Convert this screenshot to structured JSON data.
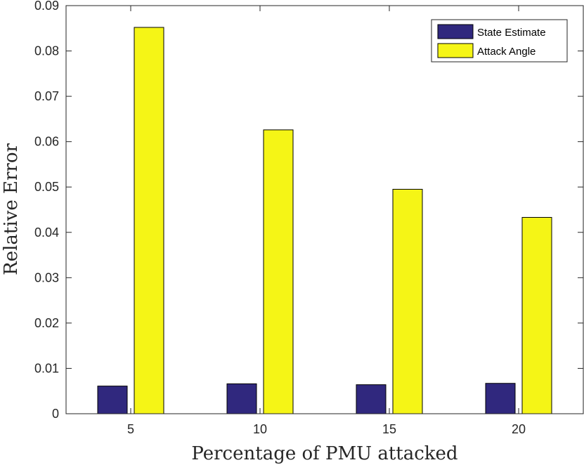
{
  "chart_data": {
    "type": "bar",
    "categories": [
      "5",
      "10",
      "15",
      "20"
    ],
    "series": [
      {
        "name": "State Estimate",
        "values": [
          0.0061,
          0.0066,
          0.0064,
          0.0067
        ],
        "color": "#30287e"
      },
      {
        "name": "Attack Angle",
        "values": [
          0.0852,
          0.0626,
          0.0495,
          0.0433
        ],
        "color": "#f5f516"
      }
    ],
    "xlabel": "Percentage of PMU attacked",
    "ylabel": "Relative Error",
    "ylim": [
      0,
      0.09
    ],
    "yticks": [
      "0",
      "0.01",
      "0.02",
      "0.03",
      "0.04",
      "0.05",
      "0.06",
      "0.07",
      "0.08",
      "0.09"
    ],
    "grid": false,
    "legend_position": "top-right"
  }
}
